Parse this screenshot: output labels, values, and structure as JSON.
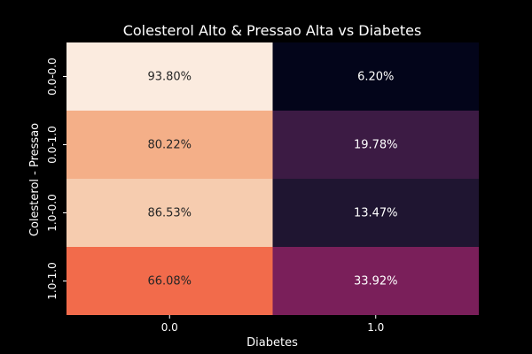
{
  "chart_data": {
    "type": "heatmap",
    "title": "Colesterol Alto & Pressao Alta vs Diabetes",
    "xlabel": "Diabetes",
    "ylabel": "Colesterol - Pressao",
    "x_categories": [
      "0.0",
      "1.0"
    ],
    "y_categories": [
      "0.0-0.0",
      "0.0-1.0",
      "1.0-0.0",
      "1.0-1.0"
    ],
    "values": [
      [
        93.8,
        6.2
      ],
      [
        80.22,
        19.78
      ],
      [
        86.53,
        13.47
      ],
      [
        66.08,
        33.92
      ]
    ],
    "cell_labels": [
      [
        "93.80%",
        "6.20%"
      ],
      [
        "80.22%",
        "19.78%"
      ],
      [
        "86.53%",
        "13.47%"
      ],
      [
        "66.08%",
        "33.92%"
      ]
    ],
    "cell_colors": [
      [
        "#fbebdf",
        "#03051a"
      ],
      [
        "#f4af88",
        "#3c1b44"
      ],
      [
        "#f6ccaf",
        "#1f1531"
      ],
      [
        "#f26b4b",
        "#7a1f5a"
      ]
    ],
    "colorbar": false,
    "legend": false,
    "grid": false,
    "background": "#000000",
    "text_color": "#ffffff"
  }
}
